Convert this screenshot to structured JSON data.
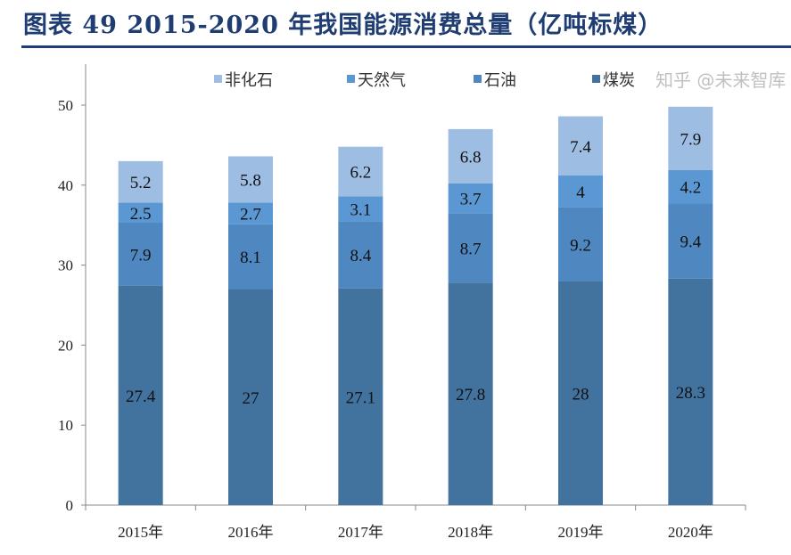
{
  "title": "图表 49   2015-2020 年我国能源消费总量（亿吨标煤）",
  "watermark": "知乎 @未来智库",
  "chart_data": {
    "type": "bar",
    "stacked": true,
    "categories": [
      "2015年",
      "2016年",
      "2017年",
      "2018年",
      "2019年",
      "2020年"
    ],
    "series": [
      {
        "name": "煤炭",
        "color": "#42729E",
        "values": [
          27.4,
          27,
          27.1,
          27.8,
          28,
          28.3
        ]
      },
      {
        "name": "石油",
        "color": "#4F88C0",
        "values": [
          7.9,
          8.1,
          8.4,
          8.7,
          9.2,
          9.4
        ]
      },
      {
        "name": "天然气",
        "color": "#5B97D2",
        "values": [
          2.5,
          2.7,
          3.1,
          3.7,
          4,
          4.2
        ]
      },
      {
        "name": "非化石",
        "color": "#9DBEE2",
        "values": [
          5.2,
          5.8,
          6.2,
          6.8,
          7.4,
          7.9
        ]
      }
    ],
    "legend_order": [
      "非化石",
      "天然气",
      "石油",
      "煤炭"
    ],
    "yticks": [
      0,
      10,
      20,
      30,
      40,
      50
    ],
    "ylim": [
      0,
      50
    ],
    "grid": false,
    "legend_position": "top"
  }
}
